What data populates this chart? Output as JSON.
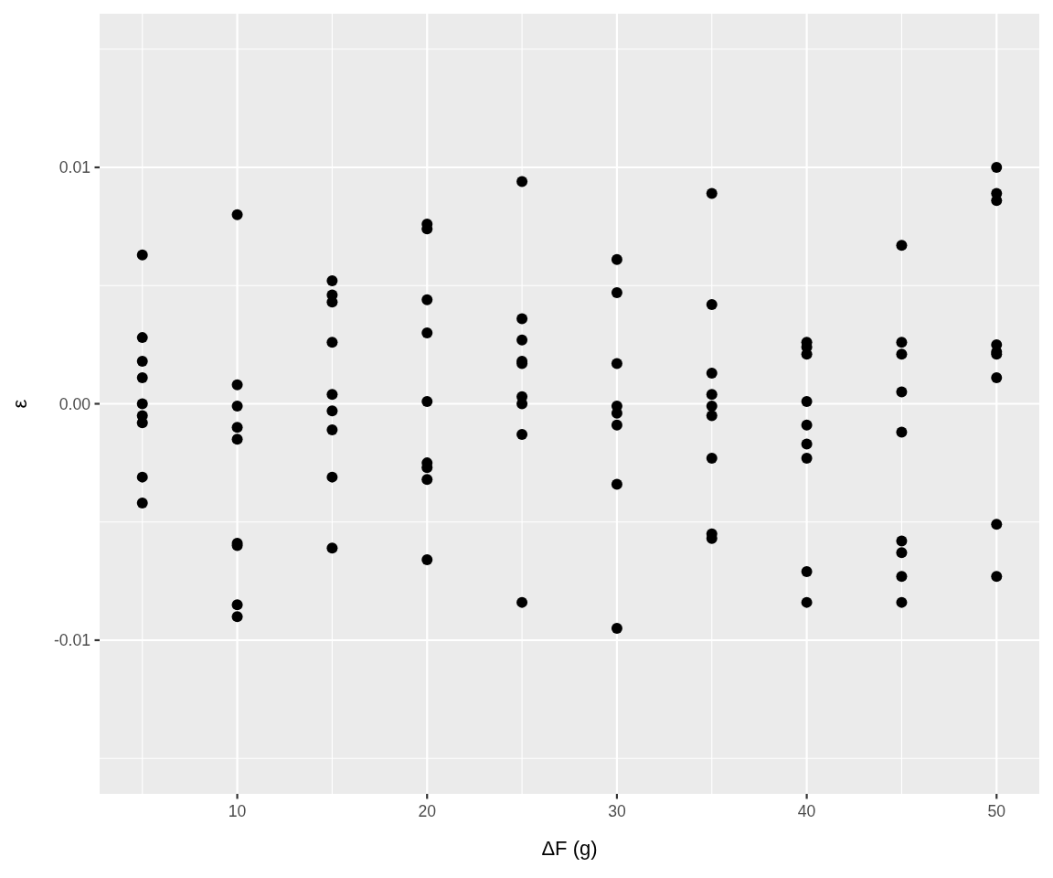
{
  "chart_data": {
    "type": "scatter",
    "xlabel": "ΔF (g)",
    "ylabel": "ε",
    "x": [
      5,
      5,
      5,
      5,
      5,
      5,
      5,
      5,
      5,
      10,
      10,
      10,
      10,
      10,
      10,
      10,
      10,
      10,
      15,
      15,
      15,
      15,
      15,
      15,
      15,
      15,
      15,
      20,
      20,
      20,
      20,
      20,
      20,
      20,
      20,
      20,
      25,
      25,
      25,
      25,
      25,
      25,
      25,
      25,
      25,
      30,
      30,
      30,
      30,
      30,
      30,
      30,
      30,
      35,
      35,
      35,
      35,
      35,
      35,
      35,
      35,
      35,
      40,
      40,
      40,
      40,
      40,
      40,
      40,
      40,
      40,
      45,
      45,
      45,
      45,
      45,
      45,
      45,
      45,
      45,
      50,
      50,
      50,
      50,
      50,
      50,
      50,
      50,
      50
    ],
    "series": [
      {
        "color": "#000000",
        "values": [
          0.0063,
          0.0028,
          0.0018,
          0.0011,
          0.0,
          -0.0005,
          -0.0008,
          -0.0031,
          -0.0042,
          0.008,
          0.0008,
          -0.0001,
          -0.001,
          -0.0015,
          -0.0059,
          -0.006,
          -0.0085,
          -0.009,
          0.0052,
          0.0046,
          0.0043,
          0.0026,
          0.0004,
          -0.0003,
          -0.0011,
          -0.0031,
          -0.0061,
          0.0076,
          0.0074,
          0.0044,
          0.003,
          0.0001,
          -0.0025,
          -0.0027,
          -0.0032,
          -0.0066,
          0.0094,
          0.0036,
          0.0027,
          0.0018,
          0.0017,
          0.0003,
          0.0,
          -0.0013,
          -0.0084,
          0.0061,
          0.0047,
          0.0017,
          -0.0001,
          -0.0004,
          -0.0009,
          -0.0034,
          -0.0095,
          0.0089,
          0.0042,
          0.0013,
          0.0004,
          -0.0001,
          -0.0005,
          -0.0023,
          -0.0055,
          -0.0057,
          0.0026,
          0.0024,
          0.0021,
          0.0001,
          -0.0009,
          -0.0017,
          -0.0023,
          -0.0071,
          -0.0084,
          0.0067,
          0.0026,
          0.0021,
          0.0005,
          -0.0012,
          -0.0058,
          -0.0063,
          -0.0073,
          -0.0084,
          0.01,
          0.0089,
          0.0086,
          0.0025,
          0.0022,
          0.0021,
          0.0011,
          -0.0051,
          -0.0073
        ]
      }
    ],
    "xlim": [
      2.75,
      52.25
    ],
    "xticks": [
      10,
      20,
      30,
      40,
      50
    ],
    "ylim": [
      -0.0165,
      0.0165
    ],
    "yticks": [
      {
        "value": -0.01,
        "label": "-0.01"
      },
      {
        "value": 0,
        "label": "0.00"
      },
      {
        "value": 0.01,
        "label": "0.01"
      }
    ],
    "grid": true,
    "marker": "circle"
  }
}
